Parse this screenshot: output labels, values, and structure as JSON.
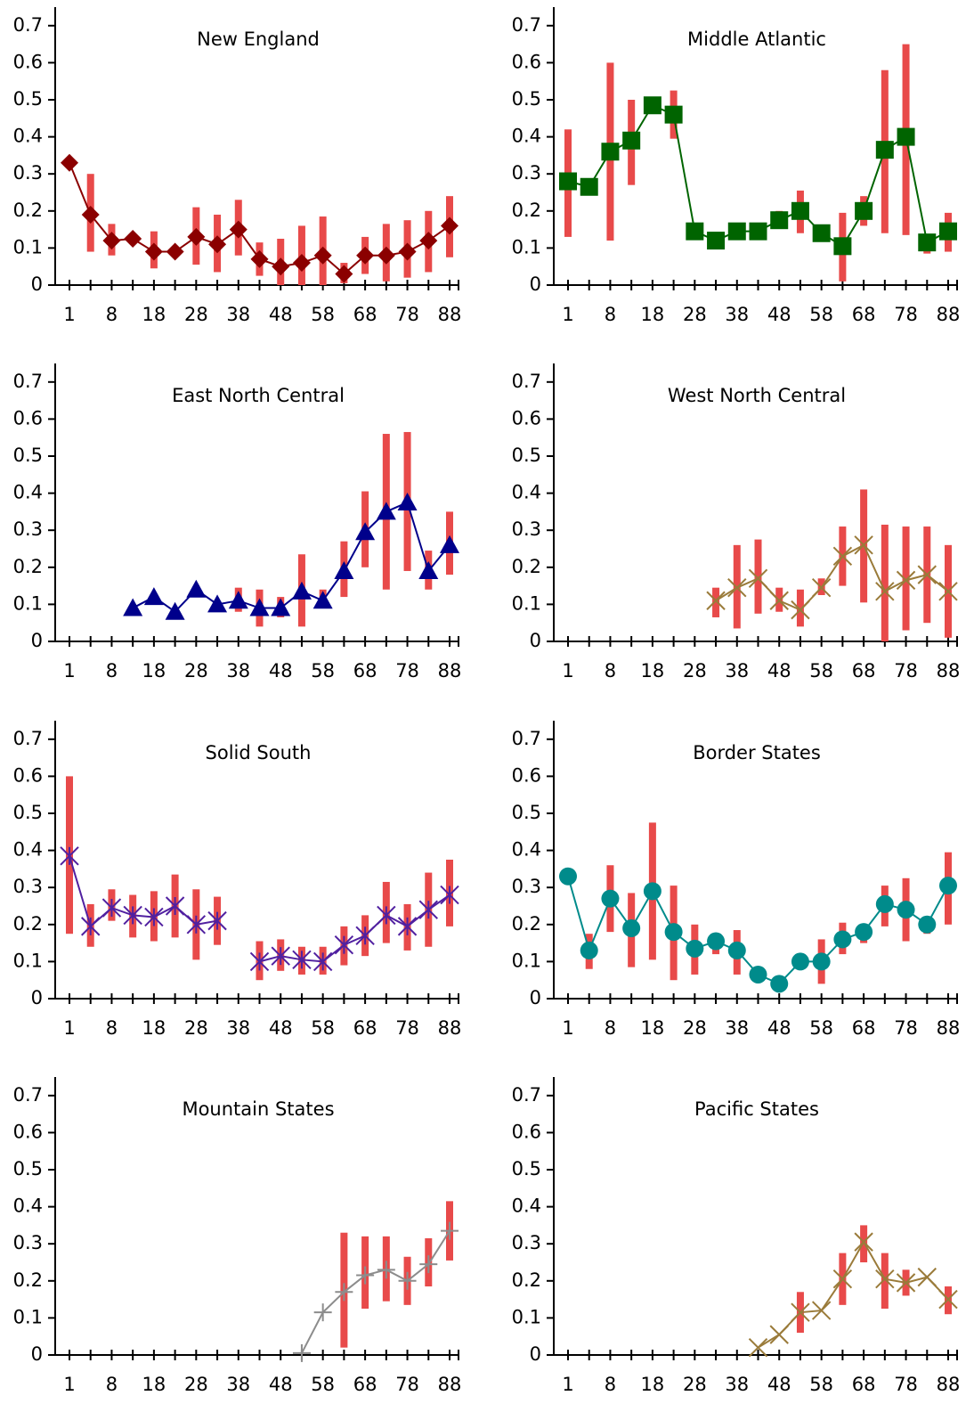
{
  "chart_data": [
    {
      "type": "line",
      "title": "New England",
      "marker": "diamond",
      "color": "#8b0000",
      "error_color": "#e84a4a",
      "categories": [
        "1",
        null,
        "8",
        null,
        "18",
        null,
        "28",
        null,
        "38",
        null,
        "48",
        null,
        "58",
        null,
        "68",
        null,
        "78",
        null,
        "88"
      ],
      "values": [
        0.33,
        0.19,
        0.12,
        0.125,
        0.09,
        0.09,
        0.13,
        0.11,
        0.15,
        0.07,
        0.05,
        0.06,
        0.08,
        0.03,
        0.08,
        0.08,
        0.09,
        0.12,
        0.16
      ],
      "lower": [
        null,
        0.09,
        0.08,
        null,
        0.045,
        null,
        0.055,
        0.035,
        0.08,
        0.025,
        0,
        0,
        0,
        0.005,
        0.03,
        0.01,
        0.02,
        0.035,
        0.075
      ],
      "upper": [
        null,
        0.3,
        0.165,
        null,
        0.145,
        null,
        0.21,
        0.19,
        0.23,
        0.115,
        0.125,
        0.16,
        0.185,
        0.06,
        0.13,
        0.165,
        0.175,
        0.2,
        0.24
      ],
      "ylim": [
        0,
        0.75
      ],
      "yticks": [
        0,
        0.1,
        0.2,
        0.3,
        0.4,
        0.5,
        0.6,
        0.7
      ]
    },
    {
      "type": "line",
      "title": "Middle Atlantic",
      "marker": "square",
      "color": "#006400",
      "error_color": "#e84a4a",
      "categories": [
        "1",
        null,
        "8",
        null,
        "18",
        null,
        "28",
        null,
        "38",
        null,
        "48",
        null,
        "58",
        null,
        "68",
        null,
        "78",
        null,
        "88"
      ],
      "values": [
        0.28,
        0.265,
        0.36,
        0.39,
        0.485,
        0.46,
        0.145,
        0.12,
        0.145,
        0.145,
        0.175,
        0.2,
        0.14,
        0.105,
        0.2,
        0.365,
        0.4,
        0.115,
        0.145
      ],
      "lower": [
        0.13,
        null,
        0.12,
        0.27,
        null,
        0.395,
        null,
        null,
        null,
        0.125,
        0.155,
        0.14,
        null,
        0.01,
        0.16,
        0.14,
        0.135,
        0.085,
        0.09
      ],
      "upper": [
        0.42,
        null,
        0.6,
        0.5,
        null,
        0.525,
        null,
        null,
        null,
        0.15,
        0.2,
        0.255,
        null,
        0.195,
        0.24,
        0.58,
        0.65,
        0.125,
        0.195
      ],
      "ylim": [
        0,
        0.75
      ],
      "yticks": [
        0,
        0.1,
        0.2,
        0.3,
        0.4,
        0.5,
        0.6,
        0.7
      ]
    },
    {
      "type": "line",
      "title": "East North Central",
      "marker": "triangle",
      "color": "#00008b",
      "error_color": "#e84a4a",
      "categories": [
        "1",
        null,
        "8",
        null,
        "18",
        null,
        "28",
        null,
        "38",
        null,
        "48",
        null,
        "58",
        null,
        "68",
        null,
        "78",
        null,
        "88"
      ],
      "values": [
        null,
        null,
        null,
        0.09,
        0.12,
        0.08,
        0.14,
        0.1,
        0.11,
        0.09,
        0.09,
        0.135,
        0.11,
        0.19,
        0.295,
        0.35,
        0.375,
        0.19,
        0.26
      ],
      "lower": [
        null,
        null,
        null,
        null,
        null,
        null,
        null,
        null,
        0.08,
        0.04,
        0.065,
        0.04,
        0.09,
        0.12,
        0.2,
        0.14,
        0.19,
        0.14,
        0.18
      ],
      "upper": [
        null,
        null,
        null,
        null,
        null,
        null,
        null,
        null,
        0.145,
        0.14,
        0.12,
        0.235,
        0.14,
        0.27,
        0.405,
        0.56,
        0.565,
        0.245,
        0.35
      ],
      "ylim": [
        0,
        0.75
      ],
      "yticks": [
        0,
        0.1,
        0.2,
        0.3,
        0.4,
        0.5,
        0.6,
        0.7
      ]
    },
    {
      "type": "line",
      "title": "West North Central",
      "marker": "x",
      "color": "#9a7b3a",
      "error_color": "#e84a4a",
      "categories": [
        "1",
        null,
        "8",
        null,
        "18",
        null,
        "28",
        null,
        "38",
        null,
        "48",
        null,
        "58",
        null,
        "68",
        null,
        "78",
        null,
        "88"
      ],
      "values": [
        null,
        null,
        null,
        null,
        null,
        null,
        null,
        0.11,
        0.145,
        0.17,
        0.11,
        0.085,
        0.145,
        0.23,
        0.26,
        0.135,
        0.165,
        0.18,
        0.135
      ],
      "lower": [
        null,
        null,
        null,
        null,
        null,
        null,
        null,
        0.065,
        0.035,
        0.075,
        0.08,
        0.04,
        0.125,
        0.15,
        0.105,
        0,
        0.03,
        0.05,
        0.01
      ],
      "upper": [
        null,
        null,
        null,
        null,
        null,
        null,
        null,
        0.145,
        0.26,
        0.275,
        0.145,
        0.14,
        0.17,
        0.31,
        0.41,
        0.315,
        0.31,
        0.31,
        0.26
      ],
      "ylim": [
        0,
        0.75
      ],
      "yticks": [
        0,
        0.1,
        0.2,
        0.3,
        0.4,
        0.5,
        0.6,
        0.7
      ]
    },
    {
      "type": "line",
      "title": "Solid South",
      "marker": "asterisk",
      "color": "#5020a0",
      "error_color": "#e84a4a",
      "categories": [
        "1",
        null,
        "8",
        null,
        "18",
        null,
        "28",
        null,
        "38",
        null,
        "48",
        null,
        "58",
        null,
        "68",
        null,
        "78",
        null,
        "88"
      ],
      "values": [
        0.385,
        0.195,
        0.245,
        0.225,
        0.22,
        0.25,
        0.2,
        0.21,
        null,
        0.1,
        0.115,
        0.105,
        0.1,
        0.145,
        0.17,
        0.225,
        0.195,
        0.24,
        0.28
      ],
      "lower": [
        0.175,
        0.14,
        0.21,
        0.165,
        0.155,
        0.165,
        0.105,
        0.145,
        null,
        0.05,
        0.075,
        0.065,
        0.065,
        0.09,
        0.115,
        0.15,
        0.13,
        0.14,
        0.195
      ],
      "upper": [
        0.6,
        0.255,
        0.295,
        0.28,
        0.29,
        0.335,
        0.295,
        0.275,
        null,
        0.155,
        0.16,
        0.14,
        0.14,
        0.195,
        0.225,
        0.315,
        0.255,
        0.34,
        0.375
      ],
      "ylim": [
        0,
        0.75
      ],
      "yticks": [
        0,
        0.1,
        0.2,
        0.3,
        0.4,
        0.5,
        0.6,
        0.7
      ]
    },
    {
      "type": "line",
      "title": "Border States",
      "marker": "circle",
      "color": "#008b8b",
      "error_color": "#e84a4a",
      "categories": [
        "1",
        null,
        "8",
        null,
        "18",
        null,
        "28",
        null,
        "38",
        null,
        "48",
        null,
        "58",
        null,
        "68",
        null,
        "78",
        null,
        "88"
      ],
      "values": [
        0.33,
        0.13,
        0.27,
        0.19,
        0.29,
        0.18,
        0.135,
        0.155,
        0.13,
        0.065,
        0.04,
        0.1,
        0.1,
        0.16,
        0.18,
        0.255,
        0.24,
        0.2,
        0.305
      ],
      "lower": [
        null,
        0.08,
        0.18,
        0.085,
        0.105,
        0.05,
        0.065,
        0.12,
        0.065,
        null,
        null,
        null,
        0.04,
        0.12,
        0.15,
        0.195,
        0.155,
        0.175,
        0.2
      ],
      "upper": [
        null,
        0.175,
        0.36,
        0.285,
        0.475,
        0.305,
        0.2,
        0.17,
        0.185,
        null,
        null,
        null,
        0.16,
        0.205,
        0.19,
        0.305,
        0.325,
        0.215,
        0.395
      ],
      "ylim": [
        0,
        0.75
      ],
      "yticks": [
        0,
        0.1,
        0.2,
        0.3,
        0.4,
        0.5,
        0.6,
        0.7
      ]
    },
    {
      "type": "line",
      "title": "Mountain States",
      "marker": "plus",
      "color": "#8c8c8c",
      "error_color": "#e84a4a",
      "categories": [
        "1",
        null,
        "8",
        null,
        "18",
        null,
        "28",
        null,
        "38",
        null,
        "48",
        null,
        "58",
        null,
        "68",
        null,
        "78",
        null,
        "88"
      ],
      "values": [
        null,
        null,
        null,
        null,
        null,
        null,
        null,
        null,
        null,
        null,
        null,
        0.005,
        0.115,
        0.17,
        0.215,
        0.23,
        0.2,
        0.245,
        0.335
      ],
      "lower": [
        null,
        null,
        null,
        null,
        null,
        null,
        null,
        null,
        null,
        null,
        null,
        null,
        null,
        0.02,
        0.125,
        0.145,
        0.135,
        0.185,
        0.255
      ],
      "upper": [
        null,
        null,
        null,
        null,
        null,
        null,
        null,
        null,
        null,
        null,
        null,
        null,
        null,
        0.33,
        0.32,
        0.32,
        0.265,
        0.315,
        0.415
      ],
      "ylim": [
        0,
        0.75
      ],
      "yticks": [
        0,
        0.1,
        0.2,
        0.3,
        0.4,
        0.5,
        0.6,
        0.7
      ]
    },
    {
      "type": "line",
      "title": "Pacific States",
      "marker": "x",
      "color": "#9a7b3a",
      "error_color": "#e84a4a",
      "categories": [
        "1",
        null,
        "8",
        null,
        "18",
        null,
        "28",
        null,
        "38",
        null,
        "48",
        null,
        "58",
        null,
        "68",
        null,
        "78",
        null,
        "88"
      ],
      "values": [
        null,
        null,
        null,
        null,
        null,
        null,
        null,
        null,
        null,
        0.02,
        0.055,
        0.115,
        0.12,
        0.205,
        0.305,
        0.205,
        0.195,
        0.21,
        0.15
      ],
      "lower": [
        null,
        null,
        null,
        null,
        null,
        null,
        null,
        null,
        null,
        null,
        null,
        0.06,
        null,
        0.135,
        0.25,
        0.125,
        0.16,
        null,
        0.11
      ],
      "upper": [
        null,
        null,
        null,
        null,
        null,
        null,
        null,
        null,
        null,
        null,
        null,
        0.17,
        null,
        0.275,
        0.35,
        0.275,
        0.23,
        null,
        0.185
      ],
      "ylim": [
        0,
        0.75
      ],
      "yticks": [
        0,
        0.1,
        0.2,
        0.3,
        0.4,
        0.5,
        0.6,
        0.7
      ]
    }
  ]
}
